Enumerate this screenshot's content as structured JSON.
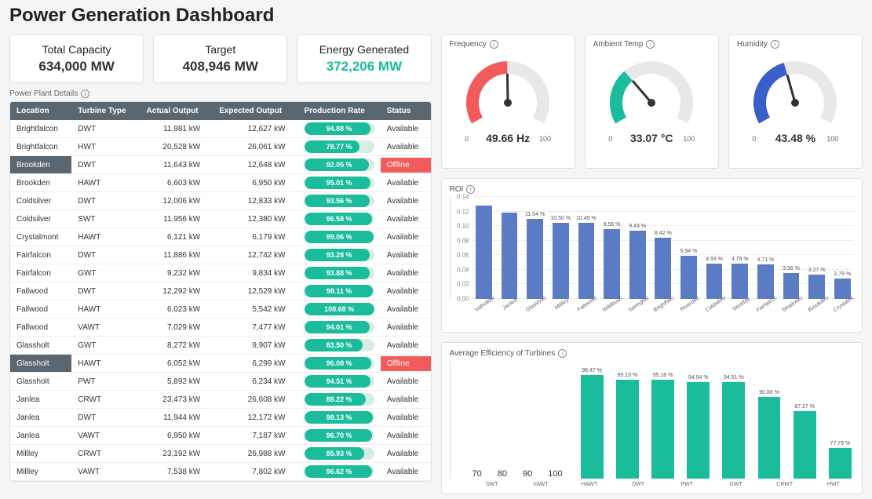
{
  "title": "Power Generation Dashboard",
  "kpis": {
    "capacity": {
      "label": "Total Capacity",
      "value": "634,000 MW"
    },
    "target": {
      "label": "Target",
      "value": "408,946 MW"
    },
    "energy": {
      "label": "Energy Generated",
      "value": "372,206 MW",
      "accent": true,
      "color": "#1abc9c"
    }
  },
  "table": {
    "title": "Power Plant Details",
    "columns": [
      "Location",
      "Turbine Type",
      "Actual Output",
      "Expected Output",
      "Production Rate",
      "Status"
    ],
    "rows": [
      {
        "location": "Brightfalcon",
        "turbine": "DWT",
        "actual": "11,981 kW",
        "expected": "12,627 kW",
        "rate": 94.88,
        "status": "Available"
      },
      {
        "location": "Brightfalcon",
        "turbine": "HWT",
        "actual": "20,528 kW",
        "expected": "26,061 kW",
        "rate": 78.77,
        "status": "Available"
      },
      {
        "location": "Brookden",
        "turbine": "DWT",
        "actual": "11,643 kW",
        "expected": "12,648 kW",
        "rate": 92.05,
        "status": "Offline"
      },
      {
        "location": "Brookden",
        "turbine": "HAWT",
        "actual": "6,603 kW",
        "expected": "6,950 kW",
        "rate": 95.01,
        "status": "Available"
      },
      {
        "location": "Coldsilver",
        "turbine": "DWT",
        "actual": "12,006 kW",
        "expected": "12,833 kW",
        "rate": 93.56,
        "status": "Available"
      },
      {
        "location": "Coldsilver",
        "turbine": "SWT",
        "actual": "11,956 kW",
        "expected": "12,380 kW",
        "rate": 96.58,
        "status": "Available"
      },
      {
        "location": "Crystalmont",
        "turbine": "HAWT",
        "actual": "6,121 kW",
        "expected": "6,179 kW",
        "rate": 99.06,
        "status": "Available"
      },
      {
        "location": "Fairfalcon",
        "turbine": "DWT",
        "actual": "11,886 kW",
        "expected": "12,742 kW",
        "rate": 93.28,
        "status": "Available"
      },
      {
        "location": "Fairfalcon",
        "turbine": "GWT",
        "actual": "9,232 kW",
        "expected": "9,834 kW",
        "rate": 93.88,
        "status": "Available"
      },
      {
        "location": "Fallwood",
        "turbine": "DWT",
        "actual": "12,292 kW",
        "expected": "12,529 kW",
        "rate": 98.11,
        "status": "Available"
      },
      {
        "location": "Fallwood",
        "turbine": "HAWT",
        "actual": "6,023 kW",
        "expected": "5,542 kW",
        "rate": 108.68,
        "status": "Available"
      },
      {
        "location": "Fallwood",
        "turbine": "VAWT",
        "actual": "7,029 kW",
        "expected": "7,477 kW",
        "rate": 94.01,
        "status": "Available"
      },
      {
        "location": "Glassholt",
        "turbine": "GWT",
        "actual": "8,272 kW",
        "expected": "9,907 kW",
        "rate": 83.5,
        "status": "Available"
      },
      {
        "location": "Glassholt",
        "turbine": "HAWT",
        "actual": "6,052 kW",
        "expected": "6,299 kW",
        "rate": 96.08,
        "status": "Offline"
      },
      {
        "location": "Glassholt",
        "turbine": "PWT",
        "actual": "5,892 kW",
        "expected": "6,234 kW",
        "rate": 94.51,
        "status": "Available"
      },
      {
        "location": "Janlea",
        "turbine": "CRWT",
        "actual": "23,473 kW",
        "expected": "26,608 kW",
        "rate": 88.22,
        "status": "Available"
      },
      {
        "location": "Janlea",
        "turbine": "DWT",
        "actual": "11,944 kW",
        "expected": "12,172 kW",
        "rate": 98.13,
        "status": "Available"
      },
      {
        "location": "Janlea",
        "turbine": "VAWT",
        "actual": "6,950 kW",
        "expected": "7,187 kW",
        "rate": 96.7,
        "status": "Available"
      },
      {
        "location": "Millley",
        "turbine": "CRWT",
        "actual": "23,192 kW",
        "expected": "26,988 kW",
        "rate": 85.93,
        "status": "Available"
      },
      {
        "location": "Millley",
        "turbine": "VAWT",
        "actual": "7,538 kW",
        "expected": "7,802 kW",
        "rate": 96.62,
        "status": "Available"
      }
    ],
    "pill_bg": "#d7ede3",
    "pill_fill": "#1abc9c",
    "offline_row_header_bg": "#5a6770",
    "offline_status_bg": "#f15b5b"
  },
  "gauges": [
    {
      "name": "frequency",
      "title": "Frequency",
      "value": 49.66,
      "unit": "Hz",
      "min": 0,
      "max": 100,
      "color": "#f15b5b"
    },
    {
      "name": "ambient-temp",
      "title": "Ambient Temp",
      "value": 33.07,
      "unit": "°C",
      "min": 0,
      "max": 100,
      "color": "#1abc9c"
    },
    {
      "name": "humidity",
      "title": "Humidity",
      "value": 43.48,
      "unit": "%",
      "min": 0,
      "max": 100,
      "color": "#3a5fc8"
    }
  ],
  "roi": {
    "title": "ROI",
    "type": "bar",
    "bar_color": "#5b7cc4",
    "ylim": [
      0,
      0.14
    ],
    "ytick_step": 0.02,
    "background_color": "#ffffff",
    "grid_color": "#eeeeee",
    "series": [
      {
        "label": "Valhollow",
        "value": 0.128,
        "text": ""
      },
      {
        "label": "Janlea",
        "value": 0.118,
        "text": ""
      },
      {
        "label": "Glassholt",
        "value": 0.11,
        "text": "11.04 %"
      },
      {
        "label": "Millley",
        "value": 0.105,
        "text": "10.50 %"
      },
      {
        "label": "Fallwood",
        "value": 0.104,
        "text": "10.49 %"
      },
      {
        "label": "Wildbush",
        "value": 0.096,
        "text": "9.56 %"
      },
      {
        "label": "Springbarrow",
        "value": 0.094,
        "text": "9.43 %"
      },
      {
        "label": "Brightfalcon",
        "value": 0.084,
        "text": "8.42 %"
      },
      {
        "label": "Riverdell",
        "value": 0.059,
        "text": "5.94 %"
      },
      {
        "label": "Coldsilver",
        "value": 0.049,
        "text": "4.93 %"
      },
      {
        "label": "Westfay",
        "value": 0.048,
        "text": "4.79 %"
      },
      {
        "label": "Fairfalcon",
        "value": 0.047,
        "text": "4.71 %"
      },
      {
        "label": "Shadowcoast",
        "value": 0.036,
        "text": "3.56 %"
      },
      {
        "label": "Brookden",
        "value": 0.033,
        "text": "3.27 %"
      },
      {
        "label": "Crystalmont",
        "value": 0.028,
        "text": "2.79 %"
      }
    ]
  },
  "efficiency": {
    "title": "Average Efficiency of Turbines",
    "type": "bar",
    "bar_color": "#1abc9c",
    "ylim": [
      70,
      100
    ],
    "ytick_step": 10,
    "background_color": "#ffffff",
    "grid_color": "#eeeeee",
    "series": [
      {
        "label": "SWT",
        "value": 96.47,
        "text": "96.47 %"
      },
      {
        "label": "VAWT",
        "value": 95.19,
        "text": "95.19 %"
      },
      {
        "label": "HAWT",
        "value": 95.18,
        "text": "95.18 %"
      },
      {
        "label": "DWT",
        "value": 94.54,
        "text": "94.54 %"
      },
      {
        "label": "PWT",
        "value": 94.51,
        "text": "94.51 %"
      },
      {
        "label": "GWT",
        "value": 90.86,
        "text": "90.86 %"
      },
      {
        "label": "CRWT",
        "value": 87.27,
        "text": "87.27 %"
      },
      {
        "label": "HWT",
        "value": 77.79,
        "text": "77.79 %"
      }
    ]
  }
}
